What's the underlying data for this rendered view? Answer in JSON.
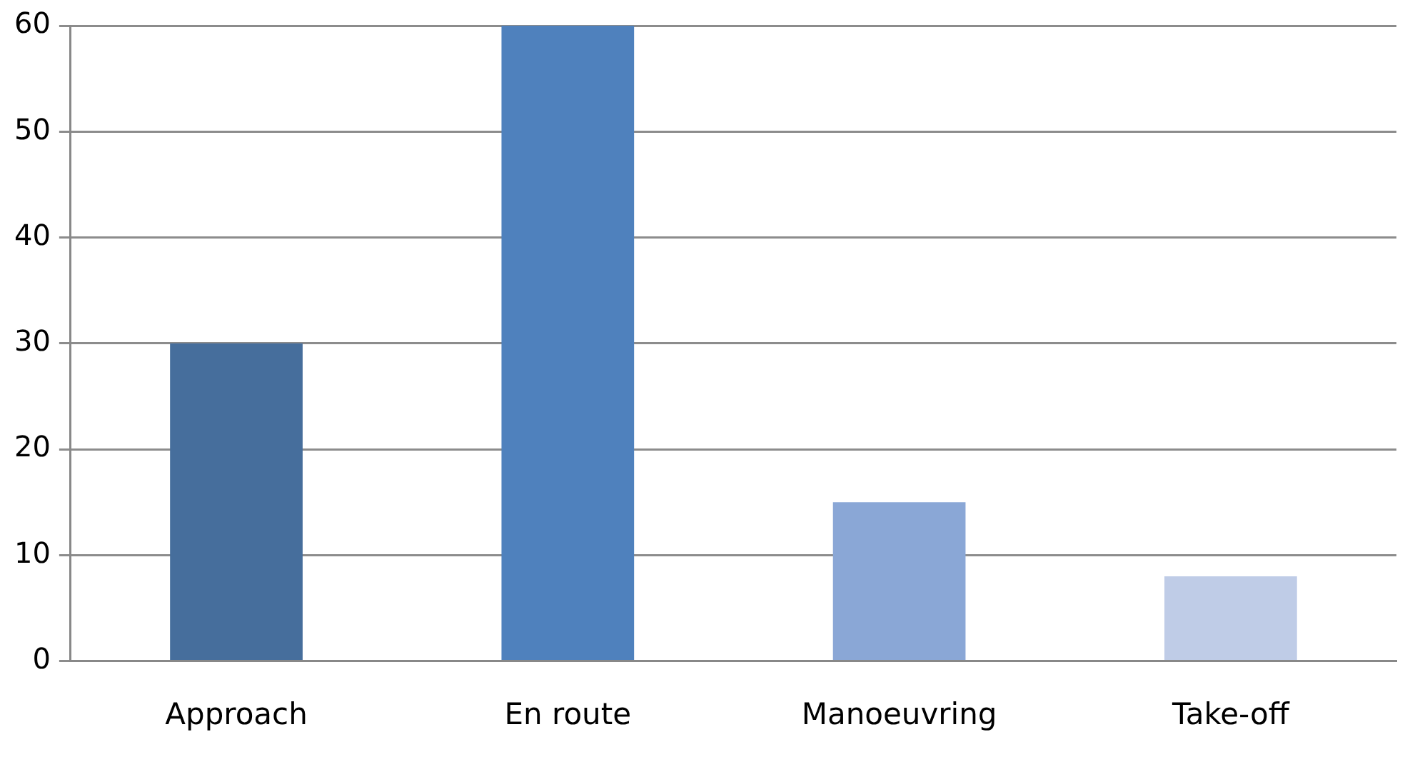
{
  "chart_data": {
    "type": "bar",
    "categories": [
      "Approach",
      "En route",
      "Manoeuvring",
      "Take-off"
    ],
    "values": [
      30,
      60,
      15,
      8
    ],
    "colors": [
      "#466e9c",
      "#4f81bd",
      "#8aa7d6",
      "#bfcce7"
    ],
    "ylim": [
      0,
      60
    ],
    "yticks": [
      0,
      10,
      20,
      30,
      40,
      50,
      60
    ],
    "grid": "y",
    "legend": false
  }
}
